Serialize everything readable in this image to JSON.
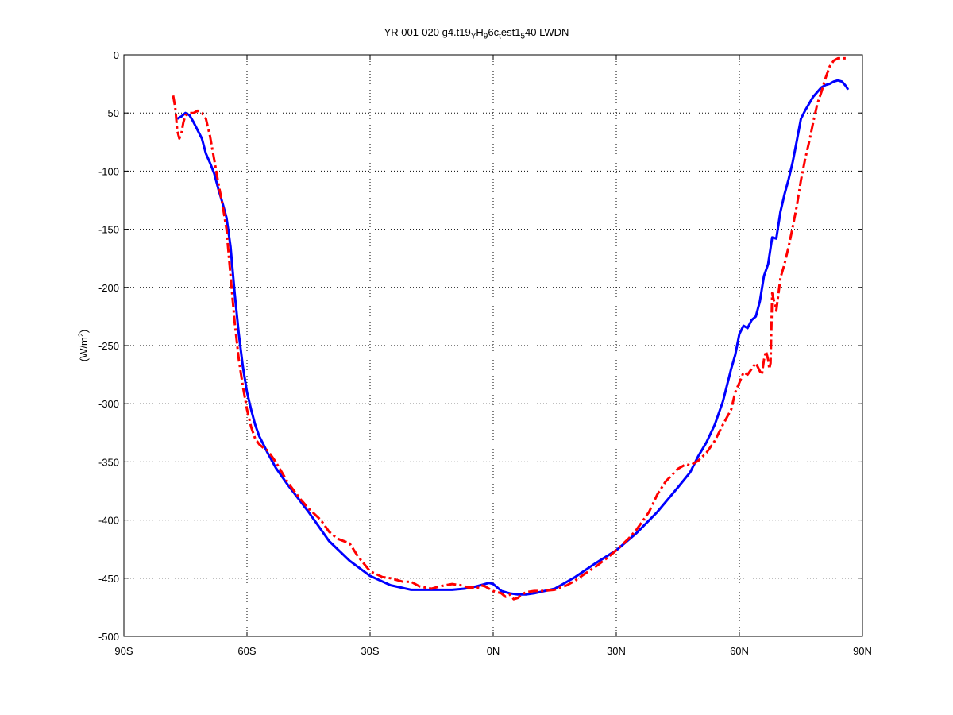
{
  "chart_data": {
    "type": "line",
    "title": {
      "parts": [
        {
          "text": "YR 001-020 g4.t19",
          "style": "normal"
        },
        {
          "text": "Y",
          "style": "sub"
        },
        {
          "text": "H",
          "style": "normal"
        },
        {
          "text": "9",
          "style": "sub"
        },
        {
          "text": "6c",
          "style": "normal"
        },
        {
          "text": "t",
          "style": "sub"
        },
        {
          "text": "est1",
          "style": "normal"
        },
        {
          "text": "5",
          "style": "sub"
        },
        {
          "text": "40 LWDN",
          "style": "normal"
        }
      ]
    },
    "ylabel": {
      "text": "(W/m",
      "sup": "2",
      "close": ")"
    },
    "xlim": [
      -90,
      90
    ],
    "ylim": [
      -500,
      0
    ],
    "xticks": [
      -90,
      -60,
      -30,
      0,
      30,
      60,
      90
    ],
    "xtick_labels": [
      "90S",
      "60S",
      "30S",
      "0N",
      "30N",
      "60N",
      "90N"
    ],
    "yticks": [
      0,
      -50,
      -100,
      -150,
      -200,
      -250,
      -300,
      -350,
      -400,
      -450,
      -500
    ],
    "ytick_labels": [
      "0",
      "-50",
      "-100",
      "-150",
      "-200",
      "-250",
      "-300",
      "-350",
      "-400",
      "-450",
      "-500"
    ],
    "grid": true,
    "series": [
      {
        "color": "#0000ff",
        "style": "solid",
        "x": [
          -77,
          -76,
          -75,
          -74,
          -73,
          -72,
          -71,
          -70,
          -69,
          -68,
          -67,
          -66,
          -65,
          -64,
          -63,
          -62,
          -61,
          -60,
          -59,
          -58,
          -57,
          -56,
          -55,
          -53,
          -50,
          -45,
          -40,
          -35,
          -30,
          -25,
          -20,
          -15,
          -10,
          -7,
          -4,
          -2,
          -1,
          0,
          1,
          2,
          4,
          6,
          8,
          10,
          15,
          20,
          25,
          30,
          35,
          40,
          45,
          48,
          50,
          52,
          54,
          56,
          58,
          59,
          60,
          61,
          62,
          63,
          64,
          65,
          66,
          67,
          68,
          69,
          70,
          71,
          72,
          73,
          74,
          75,
          76,
          77,
          78,
          79,
          80,
          81,
          82,
          83,
          84,
          85,
          86,
          86.5
        ],
        "y": [
          -55,
          -53,
          -50,
          -52,
          -58,
          -65,
          -72,
          -85,
          -93,
          -102,
          -115,
          -127,
          -140,
          -165,
          -205,
          -240,
          -268,
          -290,
          -305,
          -318,
          -328,
          -335,
          -342,
          -355,
          -370,
          -393,
          -418,
          -435,
          -448,
          -456,
          -460,
          -460,
          -460,
          -459,
          -457,
          -455,
          -454,
          -455,
          -458,
          -461,
          -463,
          -464,
          -464,
          -463,
          -459,
          -449,
          -437,
          -426,
          -411,
          -393,
          -372,
          -359,
          -345,
          -333,
          -318,
          -298,
          -270,
          -258,
          -240,
          -233,
          -235,
          -228,
          -225,
          -212,
          -190,
          -180,
          -157,
          -158,
          -135,
          -120,
          -107,
          -92,
          -74,
          -55,
          -48,
          -42,
          -36,
          -32,
          -28,
          -26,
          -25,
          -23,
          -22,
          -23,
          -27,
          -30
        ]
      },
      {
        "color": "#ff0000",
        "style": "dashdot",
        "x": [
          -78,
          -77.5,
          -77,
          -76.5,
          -76,
          -75.5,
          -75,
          -74,
          -73,
          -72,
          -71,
          -70,
          -69,
          -68,
          -67,
          -66,
          -65,
          -64,
          -63,
          -62,
          -61,
          -60,
          -59,
          -58,
          -57,
          -56,
          -55,
          -53,
          -50,
          -47,
          -45,
          -42,
          -40,
          -38,
          -35,
          -33,
          -30,
          -27,
          -25,
          -22,
          -20,
          -18,
          -15,
          -13,
          -10,
          -8,
          -6,
          -5,
          -4,
          -3,
          -2,
          -1,
          0,
          1,
          2,
          3,
          4,
          5,
          6,
          7,
          8,
          10,
          12,
          15,
          18,
          20,
          22,
          25,
          28,
          30,
          33,
          35,
          38,
          40,
          42,
          45,
          47,
          48,
          50,
          52,
          54,
          56,
          58,
          59,
          60,
          61,
          62,
          63,
          64,
          65,
          65.5,
          66,
          66.5,
          67,
          67.3,
          67.6,
          68,
          69,
          70,
          71,
          72,
          73,
          74,
          75,
          76,
          77,
          78,
          79,
          80,
          81,
          82,
          83,
          84,
          85,
          86
        ],
        "y": [
          -35,
          -45,
          -65,
          -72,
          -68,
          -58,
          -52,
          -50,
          -50,
          -48,
          -50,
          -55,
          -70,
          -90,
          -110,
          -128,
          -150,
          -190,
          -230,
          -262,
          -285,
          -305,
          -320,
          -330,
          -335,
          -338,
          -340,
          -350,
          -368,
          -382,
          -390,
          -400,
          -410,
          -416,
          -420,
          -431,
          -444,
          -449,
          -450,
          -453,
          -453,
          -457,
          -459,
          -457,
          -455,
          -456,
          -458,
          -458,
          -459,
          -456,
          -457,
          -459,
          -461,
          -462,
          -463,
          -466,
          -464,
          -468,
          -467,
          -464,
          -462,
          -461,
          -461,
          -460,
          -456,
          -452,
          -447,
          -440,
          -432,
          -426,
          -416,
          -408,
          -393,
          -378,
          -367,
          -356,
          -352,
          -353,
          -349,
          -342,
          -332,
          -318,
          -305,
          -290,
          -282,
          -273,
          -275,
          -270,
          -265,
          -272,
          -275,
          -262,
          -255,
          -262,
          -270,
          -265,
          -205,
          -220,
          -192,
          -180,
          -165,
          -148,
          -130,
          -108,
          -90,
          -75,
          -58,
          -42,
          -32,
          -20,
          -10,
          -5,
          -3,
          -3,
          -3
        ]
      }
    ]
  }
}
